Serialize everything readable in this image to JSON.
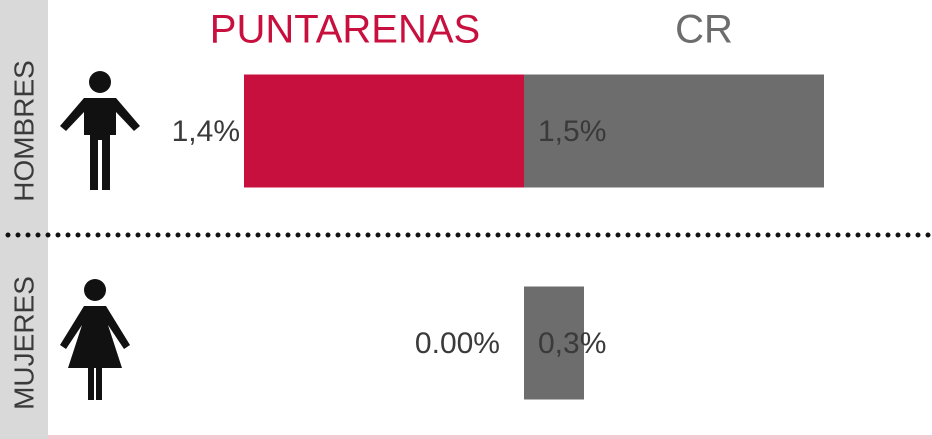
{
  "chart_data": {
    "type": "diverging-bar",
    "categories": [
      "HOMBRES",
      "MUJERES"
    ],
    "series": [
      {
        "name": "PUNTARENAS",
        "color": "#c8103e",
        "values": [
          1.4,
          0
        ],
        "value_labels": [
          "1,4%",
          "0.00%"
        ]
      },
      {
        "name": "CR",
        "color": "#6d6d6d",
        "values": [
          1.5,
          0.3
        ],
        "value_labels": [
          "1,5%",
          "0,3%"
        ]
      }
    ]
  }
}
